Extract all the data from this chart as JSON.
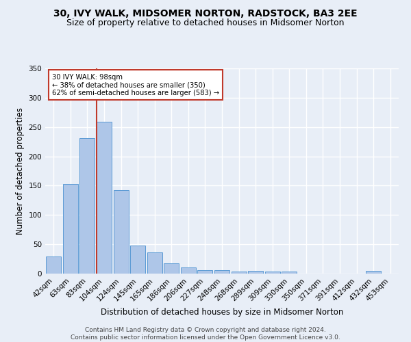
{
  "title": "30, IVY WALK, MIDSOMER NORTON, RADSTOCK, BA3 2EE",
  "subtitle": "Size of property relative to detached houses in Midsomer Norton",
  "xlabel": "Distribution of detached houses by size in Midsomer Norton",
  "ylabel": "Number of detached properties",
  "categories": [
    "42sqm",
    "63sqm",
    "83sqm",
    "104sqm",
    "124sqm",
    "145sqm",
    "165sqm",
    "186sqm",
    "206sqm",
    "227sqm",
    "248sqm",
    "268sqm",
    "289sqm",
    "309sqm",
    "330sqm",
    "350sqm",
    "371sqm",
    "391sqm",
    "412sqm",
    "432sqm",
    "453sqm"
  ],
  "values": [
    29,
    153,
    231,
    259,
    142,
    48,
    36,
    18,
    11,
    6,
    6,
    4,
    5,
    4,
    3,
    0,
    0,
    0,
    0,
    5,
    0
  ],
  "bar_color": "#aec6e8",
  "bar_edge_color": "#5b9bd5",
  "background_color": "#e8eef7",
  "grid_color": "#ffffff",
  "vline_color": "#c0392b",
  "vline_x": 3.0,
  "annotation_text": "30 IVY WALK: 98sqm\n← 38% of detached houses are smaller (350)\n62% of semi-detached houses are larger (583) →",
  "annotation_box_color": "#ffffff",
  "annotation_box_edge": "#c0392b",
  "ylim": [
    0,
    350
  ],
  "yticks": [
    0,
    50,
    100,
    150,
    200,
    250,
    300,
    350
  ],
  "footer": "Contains HM Land Registry data © Crown copyright and database right 2024.\nContains public sector information licensed under the Open Government Licence v3.0.",
  "title_fontsize": 10,
  "subtitle_fontsize": 9,
  "axis_label_fontsize": 8.5,
  "tick_fontsize": 7.5,
  "footer_fontsize": 6.5
}
